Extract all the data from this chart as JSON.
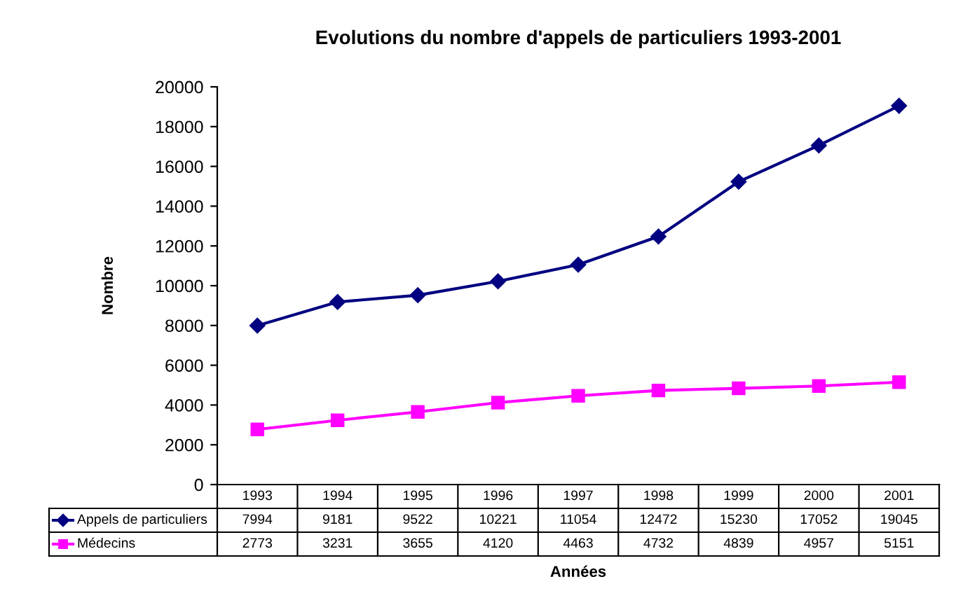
{
  "chart_data": {
    "type": "line",
    "title": "Evolutions du nombre d'appels de particuliers 1993-2001",
    "xlabel": "Années",
    "ylabel": "Nombre",
    "categories": [
      "1993",
      "1994",
      "1995",
      "1996",
      "1997",
      "1998",
      "1999",
      "2000",
      "2001"
    ],
    "series": [
      {
        "name": "Appels de particuliers",
        "color": "#000080",
        "marker": "diamond",
        "values": [
          7994,
          9181,
          9522,
          10221,
          11054,
          12472,
          15230,
          17052,
          19045
        ]
      },
      {
        "name": "Médecins",
        "color": "#ff00ff",
        "marker": "square",
        "values": [
          2773,
          3231,
          3655,
          4120,
          4463,
          4732,
          4839,
          4957,
          5151
        ]
      }
    ],
    "ylim": [
      0,
      20000
    ],
    "yticks": [
      0,
      2000,
      4000,
      6000,
      8000,
      10000,
      12000,
      14000,
      16000,
      18000,
      20000
    ],
    "grid": false,
    "legend": "bottom",
    "data_labels": true,
    "line_style": "solid"
  }
}
